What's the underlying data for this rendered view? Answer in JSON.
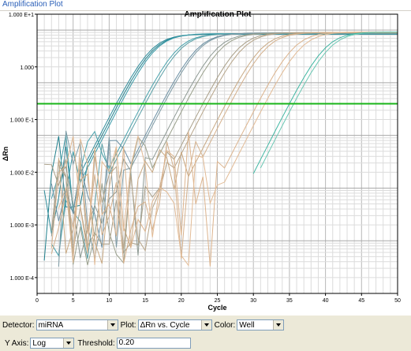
{
  "window": {
    "title": "Amplification Plot"
  },
  "chart_data": {
    "type": "line",
    "title": "Amplification Plot",
    "xlabel": "Cycle",
    "ylabel": "ΔRn",
    "xlim": [
      0,
      50
    ],
    "ylim": [
      5e-05,
      10
    ],
    "yscale": "log",
    "grid": true,
    "x_ticks": [
      "0",
      "5",
      "10",
      "15",
      "20",
      "25",
      "30",
      "35",
      "40",
      "45",
      "50"
    ],
    "y_ticks": [
      "1.000 E+1",
      "1.000",
      "1.000 E-1",
      "1.000 E-2",
      "1.000 E-3",
      "1.000 E-4"
    ],
    "threshold": 0.2,
    "threshold_color": "#19b419",
    "series": [
      {
        "color": "#2e8b9a",
        "plateau": 4.2,
        "ct": 11.0,
        "noise_start": 1
      },
      {
        "color": "#1f7f8c",
        "plateau": 4.2,
        "ct": 11.3,
        "noise_start": 1
      },
      {
        "color": "#3a9aa8",
        "plateau": 4.3,
        "ct": 11.6,
        "noise_start": 2
      },
      {
        "color": "#4aa3ad",
        "plateau": 4.3,
        "ct": 14.6,
        "noise_start": 2
      },
      {
        "color": "#5a9fa6",
        "plateau": 4.3,
        "ct": 15.0,
        "noise_start": 3
      },
      {
        "color": "#6b8fa3",
        "plateau": 4.4,
        "ct": 17.3,
        "noise_start": 2
      },
      {
        "color": "#7d9aa4",
        "plateau": 4.4,
        "ct": 17.6,
        "noise_start": 3
      },
      {
        "color": "#8e9a94",
        "plateau": 4.4,
        "ct": 20.0,
        "noise_start": 2
      },
      {
        "color": "#9aa08c",
        "plateau": 4.4,
        "ct": 20.6,
        "noise_start": 3
      },
      {
        "color": "#a99f88",
        "plateau": 4.5,
        "ct": 23.0,
        "noise_start": 1
      },
      {
        "color": "#b7a58a",
        "plateau": 4.5,
        "ct": 23.6,
        "noise_start": 2
      },
      {
        "color": "#c8a882",
        "plateau": 4.5,
        "ct": 26.2,
        "noise_start": 3
      },
      {
        "color": "#d4b08c",
        "plateau": 4.5,
        "ct": 26.8,
        "noise_start": 2
      },
      {
        "color": "#dcb48e",
        "plateau": 4.6,
        "ct": 30.6,
        "noise_start": 2
      },
      {
        "color": "#e2bb96",
        "plateau": 4.6,
        "ct": 31.6,
        "noise_start": 3
      },
      {
        "color": "#3fb6a2",
        "plateau": 4.6,
        "ct": 35.0,
        "noise_start": 30
      },
      {
        "color": "#6cc8b4",
        "plateau": 4.6,
        "ct": 35.6,
        "noise_start": 31
      }
    ]
  },
  "controls": {
    "detector_label": "Detector:",
    "detector_value": "miRNA",
    "plot_label": "Plot:",
    "plot_value": "ΔRn vs. Cycle",
    "color_label": "Color:",
    "color_value": "Well",
    "yaxis_label": "Y Axis:",
    "yaxis_value": "Log",
    "threshold_label": "Threshold:",
    "threshold_value": "0.20"
  }
}
